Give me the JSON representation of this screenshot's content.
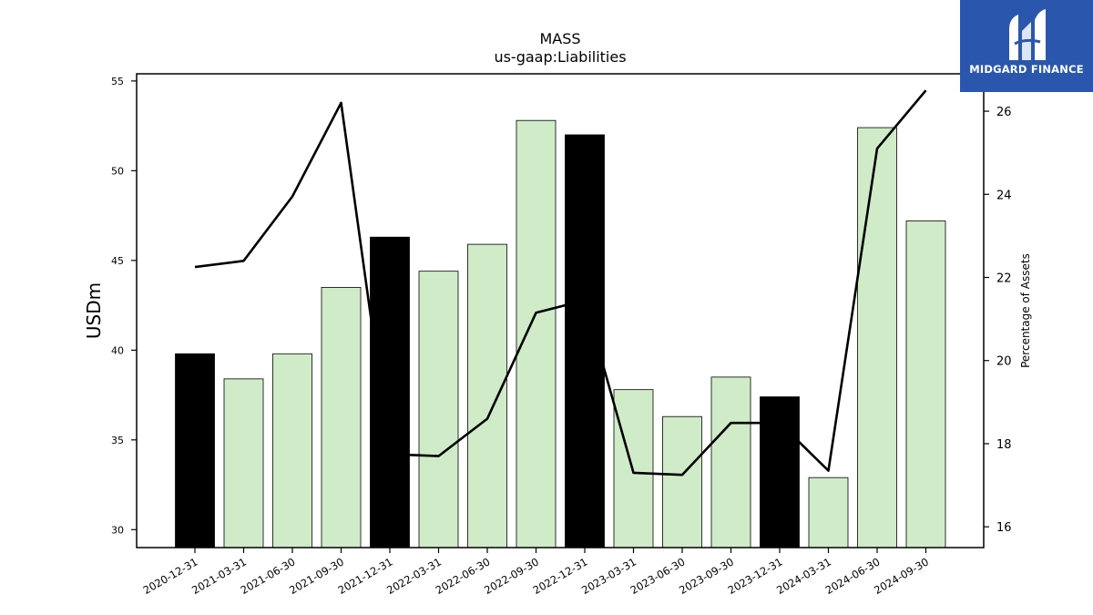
{
  "chart_data": {
    "type": "bar",
    "title": "MASS",
    "subtitle": "us-gaap:Liabilities",
    "ylabel": "USDm",
    "y2label": "Percentage of Assets",
    "ylim": [
      29,
      55.4
    ],
    "y2lim": [
      15.5,
      26.9
    ],
    "yticks": [
      30,
      35,
      40,
      45,
      50,
      55
    ],
    "y2ticks": [
      16,
      18,
      20,
      22,
      24,
      26
    ],
    "categories": [
      "2020-12-31",
      "2021-03-31",
      "2021-06-30",
      "2021-09-30",
      "2021-12-31",
      "2022-03-31",
      "2022-06-30",
      "2022-09-30",
      "2022-12-31",
      "2023-03-31",
      "2023-06-30",
      "2023-09-30",
      "2023-12-31",
      "2024-03-31",
      "2024-06-30",
      "2024-09-30"
    ],
    "series": [
      {
        "type": "bar",
        "values": [
          39.8,
          38.4,
          39.8,
          43.5,
          46.3,
          44.4,
          45.9,
          52.8,
          52.0,
          37.8,
          36.3,
          38.5,
          37.4,
          32.9,
          52.4,
          47.2
        ],
        "highlight": [
          true,
          false,
          false,
          false,
          true,
          false,
          false,
          false,
          true,
          false,
          false,
          false,
          true,
          false,
          false,
          false
        ]
      },
      {
        "type": "line",
        "axis": "right",
        "values": [
          22.25,
          22.4,
          23.95,
          26.2,
          17.75,
          17.7,
          18.6,
          21.15,
          21.45,
          17.3,
          17.25,
          18.5,
          18.5,
          17.35,
          25.1,
          26.5
        ]
      }
    ],
    "colors": {
      "bar": "#d0ebc8",
      "bar_highlight": "#000000",
      "bar_edge": "#000000",
      "line": "#000000"
    },
    "grid": false,
    "legend": "none"
  },
  "logo": {
    "text": "MIDGARD FINANCE",
    "color": "#2a57ad",
    "icon": "midgard-m-logo-icon"
  }
}
